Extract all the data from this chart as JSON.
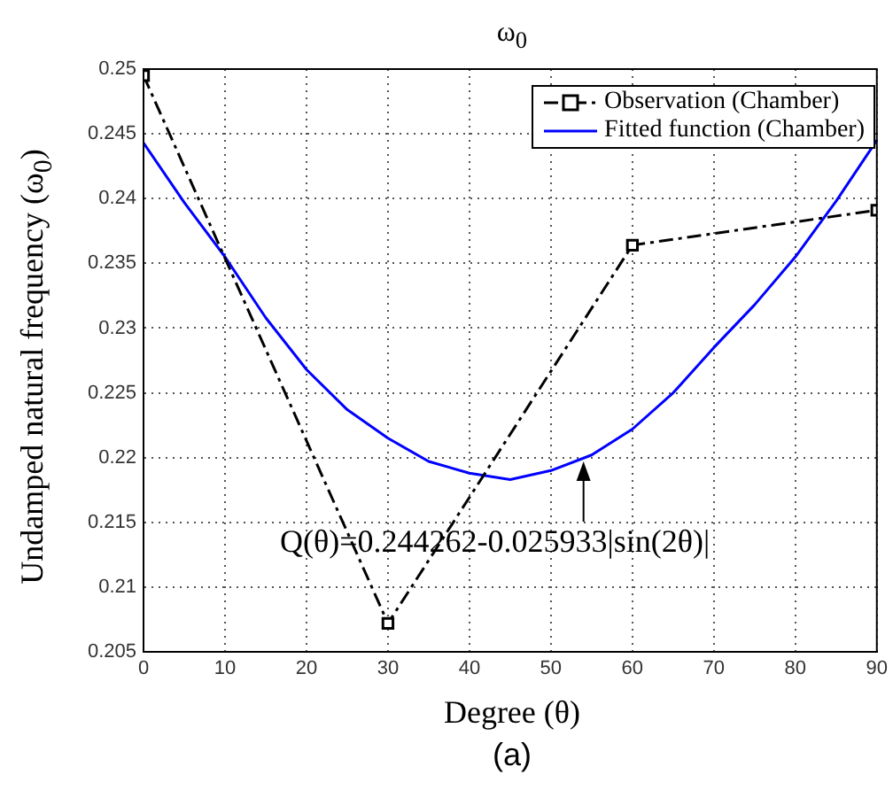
{
  "chart_data": {
    "type": "line",
    "title": "ω$_{0}$",
    "xlabel": "Degree (θ)",
    "ylabel": "Undamped natural frequency (ω$_{0}$)",
    "series": [
      {
        "name": "Observation (Chamber)",
        "color": "#000000",
        "x": [
          0,
          30,
          60,
          90
        ],
        "values": [
          0.2495,
          0.2072,
          0.2364,
          0.2391
        ],
        "marker": "square",
        "line_style": "dashed"
      },
      {
        "name": "Fitted function (Chamber)",
        "color": "#0000ff",
        "x": [
          0,
          5,
          10,
          15,
          20,
          25,
          30,
          35,
          40,
          45,
          50,
          55,
          60,
          65,
          70,
          75,
          80,
          85,
          90
        ],
        "values": [
          0.2443,
          0.2397,
          0.2355,
          0.2308,
          0.2268,
          0.2237,
          0.2215,
          0.2197,
          0.2188,
          0.2183,
          0.219,
          0.2202,
          0.2222,
          0.225,
          0.2285,
          0.2318,
          0.2355,
          0.2398,
          0.2445
        ],
        "marker": "none",
        "line_style": "solid"
      }
    ],
    "xlim": [
      0,
      90
    ],
    "xticks": [
      0,
      10,
      20,
      30,
      40,
      50,
      60,
      70,
      80,
      90
    ],
    "ylim": [
      0.205,
      0.25
    ],
    "yticks": [
      0.205,
      0.21,
      0.215,
      0.22,
      0.225,
      0.23,
      0.235,
      0.24,
      0.245,
      0.25
    ],
    "grid": true,
    "legend": "top right",
    "annotations": [
      {
        "text": "Q(θ)=0.244262-0.025933|sin(2θ)|",
        "x": 54,
        "y": 0.2197
      },
      "(a)"
    ]
  }
}
